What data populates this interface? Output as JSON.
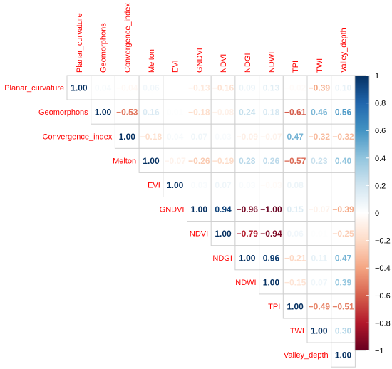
{
  "chart_data": {
    "type": "heatmap",
    "variables": [
      "Planar_curvature",
      "Geomorphons",
      "Convergence_index",
      "Melton",
      "EVI",
      "GNDVI",
      "NDVI",
      "NDGI",
      "NDWI",
      "TPI",
      "TWI",
      "Valley_depth"
    ],
    "matrix": [
      [
        1.0,
        0.04,
        -0.04,
        0.06,
        0.0,
        -0.13,
        -0.16,
        0.09,
        0.13,
        -0.02,
        -0.39,
        0.1
      ],
      [
        null,
        1.0,
        -0.53,
        0.16,
        0.01,
        -0.18,
        -0.08,
        0.24,
        0.18,
        -0.61,
        0.46,
        0.56
      ],
      [
        null,
        null,
        1.0,
        -0.18,
        0.04,
        0.07,
        0.03,
        -0.09,
        -0.07,
        0.47,
        -0.32,
        -0.32
      ],
      [
        null,
        null,
        null,
        1.0,
        -0.07,
        -0.26,
        -0.19,
        0.28,
        0.26,
        -0.57,
        0.23,
        0.4
      ],
      [
        null,
        null,
        null,
        null,
        1.0,
        0.03,
        0.07,
        0.03,
        -0.03,
        0.08,
        0.0,
        0.0
      ],
      [
        null,
        null,
        null,
        null,
        null,
        1.0,
        0.94,
        -0.96,
        -1.0,
        0.15,
        -0.07,
        -0.39
      ],
      [
        null,
        null,
        null,
        null,
        null,
        null,
        1.0,
        -0.79,
        -0.94,
        0.06,
        0.01,
        -0.25
      ],
      [
        null,
        null,
        null,
        null,
        null,
        null,
        null,
        1.0,
        0.96,
        -0.21,
        0.11,
        0.47
      ],
      [
        null,
        null,
        null,
        null,
        null,
        null,
        null,
        null,
        1.0,
        -0.15,
        0.07,
        0.39
      ],
      [
        null,
        null,
        null,
        null,
        null,
        null,
        null,
        null,
        null,
        1.0,
        -0.49,
        -0.51
      ],
      [
        null,
        null,
        null,
        null,
        null,
        null,
        null,
        null,
        null,
        null,
        1.0,
        0.3
      ],
      [
        null,
        null,
        null,
        null,
        null,
        null,
        null,
        null,
        null,
        null,
        null,
        1.0
      ]
    ],
    "colorbar": {
      "range": [
        -1,
        1
      ],
      "ticks": [
        "1",
        "0.8",
        "0.6",
        "0.4",
        "0.2",
        "0",
        "−0.2",
        "−0.4",
        "−0.6",
        "−0.8",
        "−1"
      ],
      "tick_values": [
        1,
        0.8,
        0.6,
        0.4,
        0.2,
        0,
        -0.2,
        -0.4,
        -0.6,
        -0.8,
        -1
      ]
    },
    "colors": {
      "negative": "#67001F",
      "neutral": "#FFFFFF",
      "positive": "#053061",
      "labels": "#FF0000"
    },
    "title": "",
    "xlabel": "",
    "ylabel": "",
    "layout": "upper-triangle",
    "legend_position": "right"
  }
}
